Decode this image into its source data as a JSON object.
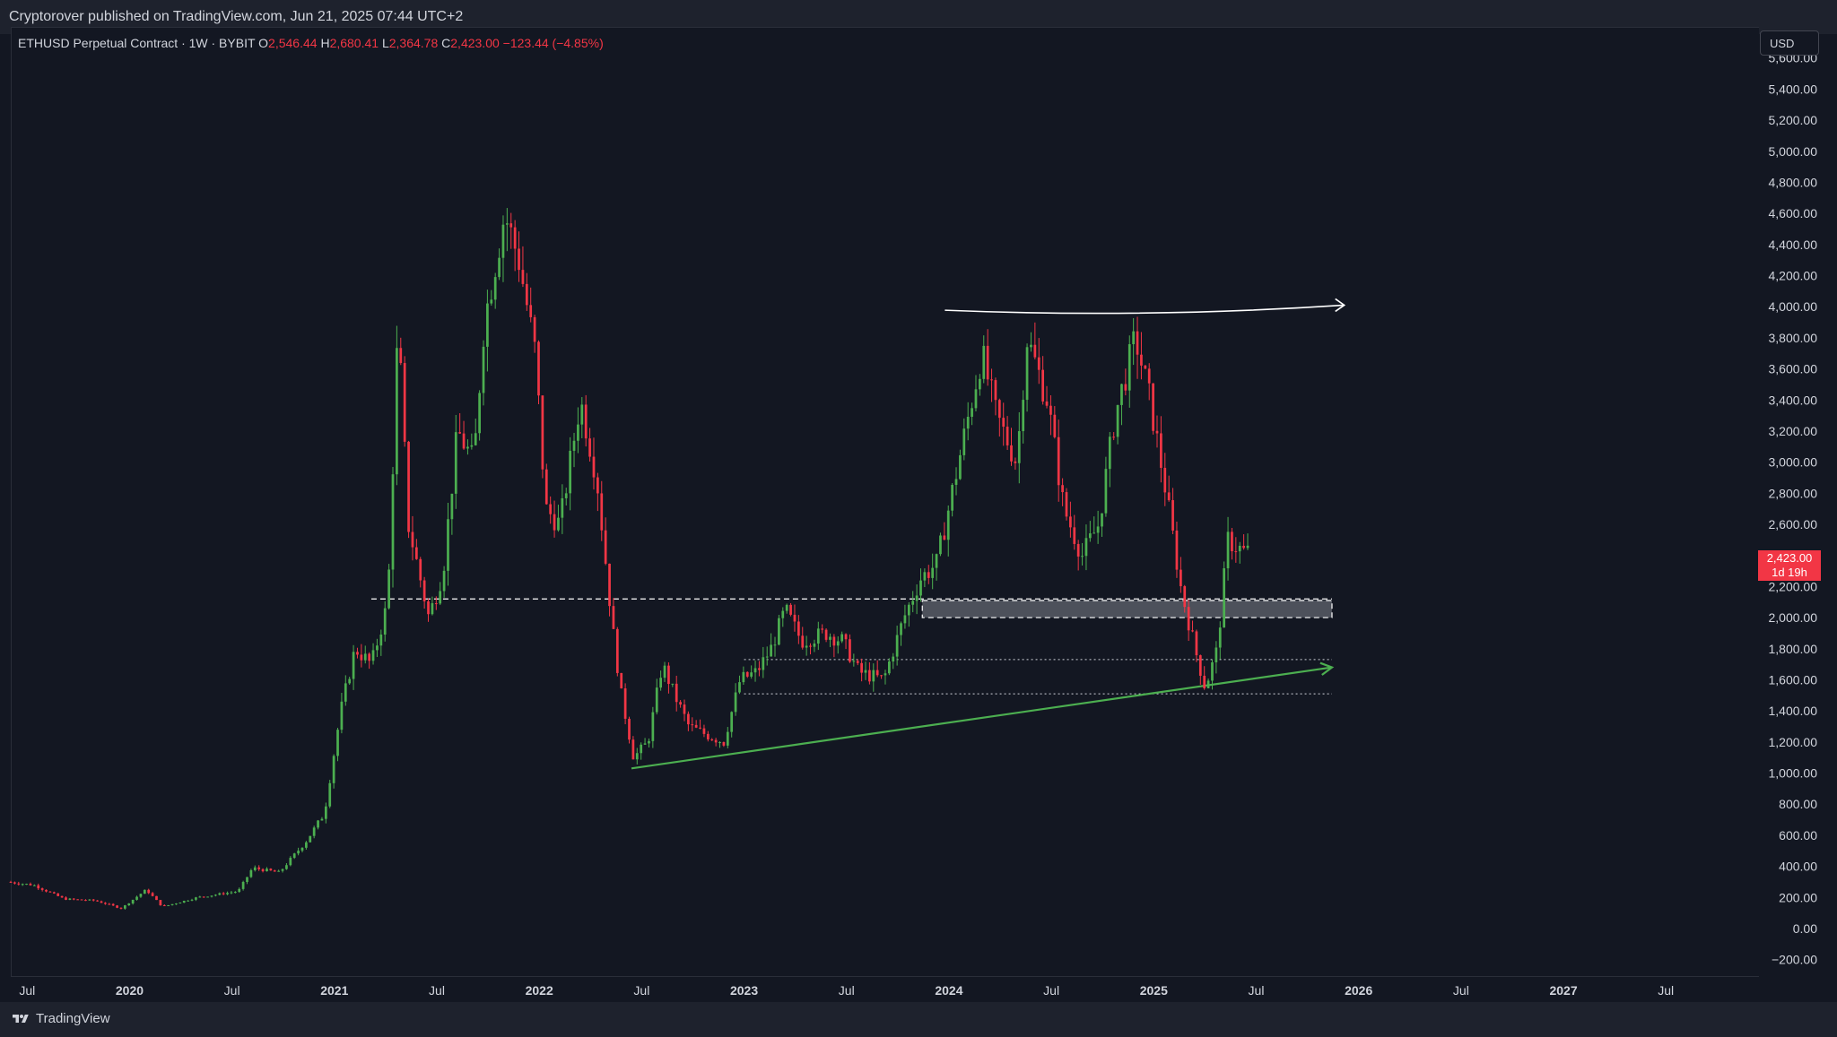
{
  "publisher": {
    "text": "Cryptorover published on TradingView.com, Jun 21, 2025 07:44 UTC+2"
  },
  "legend": {
    "symbol": "ETHUSD Perpetual Contract · 1W · BYBIT",
    "open_label": "O",
    "open": "2,546.44",
    "high_label": "H",
    "high": "2,680.41",
    "low_label": "L",
    "low": "2,364.78",
    "close_label": "C",
    "close": "2,423.00",
    "change": "−123.44 (−4.85%)"
  },
  "currency": "USD",
  "price_tag": {
    "price": "2,423.00",
    "countdown": "1d 19h"
  },
  "footer": {
    "brand": "TradingView"
  },
  "colors": {
    "background": "#131722",
    "up": "#4caf50",
    "down": "#f23645",
    "axis_text": "#d1d4dc",
    "trendline": "#4caf50",
    "resistance": "#ffffff",
    "zone": "#9598a1"
  },
  "chart_data": {
    "type": "candlestick",
    "symbol": "ETHUSD",
    "interval": "1W",
    "y_axis": {
      "min": -300,
      "max": 5800,
      "ticks": [
        "−200.00",
        "0.00",
        "200.00",
        "400.00",
        "600.00",
        "800.00",
        "1,000.00",
        "1,200.00",
        "1,400.00",
        "1,600.00",
        "1,800.00",
        "2,000.00",
        "2,200.00",
        "2,400.00",
        "2,600.00",
        "2,800.00",
        "3,000.00",
        "3,200.00",
        "3,400.00",
        "3,600.00",
        "3,800.00",
        "4,000.00",
        "4,200.00",
        "4,400.00",
        "4,600.00",
        "4,800.00",
        "5,000.00",
        "5,200.00",
        "5,400.00",
        "5,600.00"
      ],
      "tick_values": [
        -200,
        0,
        200,
        400,
        600,
        800,
        1000,
        1200,
        1400,
        1600,
        1800,
        2000,
        2200,
        2400,
        2600,
        2800,
        3000,
        3200,
        3400,
        3600,
        3800,
        4000,
        4200,
        4400,
        4600,
        4800,
        5000,
        5200,
        5400,
        5600
      ]
    },
    "x_axis": {
      "min": 2019.42,
      "max": 2027.95,
      "ticks": [
        "Jul",
        "2020",
        "Jul",
        "2021",
        "Jul",
        "2022",
        "Jul",
        "2023",
        "Jul",
        "2024",
        "Jul",
        "2025",
        "Jul",
        "2026",
        "Jul",
        "2027",
        "Jul"
      ],
      "tick_values": [
        2019.5,
        2020.0,
        2020.5,
        2021.0,
        2021.5,
        2022.0,
        2022.5,
        2023.0,
        2023.5,
        2024.0,
        2024.5,
        2025.0,
        2025.5,
        2026.0,
        2026.5,
        2027.0,
        2027.5
      ],
      "bold_ticks": [
        "2020",
        "2021",
        "2022",
        "2023",
        "2024",
        "2025",
        "2026",
        "2027"
      ]
    },
    "price_path": [
      [
        2019.42,
        300
      ],
      [
        2019.55,
        280
      ],
      [
        2019.7,
        190
      ],
      [
        2019.85,
        180
      ],
      [
        2019.98,
        130
      ],
      [
        2020.1,
        250
      ],
      [
        2020.18,
        140
      ],
      [
        2020.35,
        200
      ],
      [
        2020.55,
        240
      ],
      [
        2020.62,
        390
      ],
      [
        2020.75,
        360
      ],
      [
        2020.88,
        560
      ],
      [
        2020.97,
        740
      ],
      [
        2021.05,
        1400
      ],
      [
        2021.12,
        1800
      ],
      [
        2021.2,
        1700
      ],
      [
        2021.28,
        2100
      ],
      [
        2021.33,
        3900
      ],
      [
        2021.38,
        2600
      ],
      [
        2021.48,
        2000
      ],
      [
        2021.55,
        2300
      ],
      [
        2021.62,
        3200
      ],
      [
        2021.7,
        3000
      ],
      [
        2021.75,
        3900
      ],
      [
        2021.85,
        4600
      ],
      [
        2021.92,
        4300
      ],
      [
        2022.0,
        3700
      ],
      [
        2022.05,
        2700
      ],
      [
        2022.12,
        2600
      ],
      [
        2022.22,
        3400
      ],
      [
        2022.3,
        2900
      ],
      [
        2022.38,
        1900
      ],
      [
        2022.42,
        1500
      ],
      [
        2022.48,
        1100
      ],
      [
        2022.55,
        1200
      ],
      [
        2022.62,
        1700
      ],
      [
        2022.68,
        1500
      ],
      [
        2022.75,
        1300
      ],
      [
        2022.83,
        1250
      ],
      [
        2022.92,
        1200
      ],
      [
        2023.0,
        1600
      ],
      [
        2023.08,
        1650
      ],
      [
        2023.15,
        1800
      ],
      [
        2023.22,
        2050
      ],
      [
        2023.3,
        1850
      ],
      [
        2023.42,
        1900
      ],
      [
        2023.5,
        1850
      ],
      [
        2023.58,
        1650
      ],
      [
        2023.7,
        1600
      ],
      [
        2023.8,
        2000
      ],
      [
        2023.88,
        2250
      ],
      [
        2023.96,
        2350
      ],
      [
        2024.05,
        2900
      ],
      [
        2024.18,
        3700
      ],
      [
        2024.25,
        3300
      ],
      [
        2024.35,
        3000
      ],
      [
        2024.4,
        3800
      ],
      [
        2024.5,
        3400
      ],
      [
        2024.58,
        2700
      ],
      [
        2024.67,
        2400
      ],
      [
        2024.75,
        2600
      ],
      [
        2024.83,
        3300
      ],
      [
        2024.93,
        3800
      ],
      [
        2025.0,
        3400
      ],
      [
        2025.08,
        2800
      ],
      [
        2025.15,
        2200
      ],
      [
        2025.22,
        1800
      ],
      [
        2025.27,
        1550
      ],
      [
        2025.33,
        1800
      ],
      [
        2025.38,
        2500
      ],
      [
        2025.46,
        2423
      ]
    ],
    "annotations": {
      "support_trendline": {
        "from": [
          2022.45,
          1030
        ],
        "to": [
          2025.87,
          1680
        ]
      },
      "resistance_line": {
        "from": [
          2023.98,
          3960
        ],
        "to": [
          2025.93,
          4010
        ]
      },
      "dashed_level": {
        "value": 2120,
        "x_from": 2021.18,
        "x_to": 2025.87
      },
      "zone": {
        "from_value": 2000,
        "to_value": 2110,
        "x_from": 2023.87,
        "x_to": 2025.87
      },
      "dotted_levels": [
        {
          "value": 1730,
          "x_from": 2023.0,
          "x_to": 2025.87
        },
        {
          "value": 1510,
          "x_from": 2023.0,
          "x_to": 2025.87
        }
      ]
    }
  }
}
